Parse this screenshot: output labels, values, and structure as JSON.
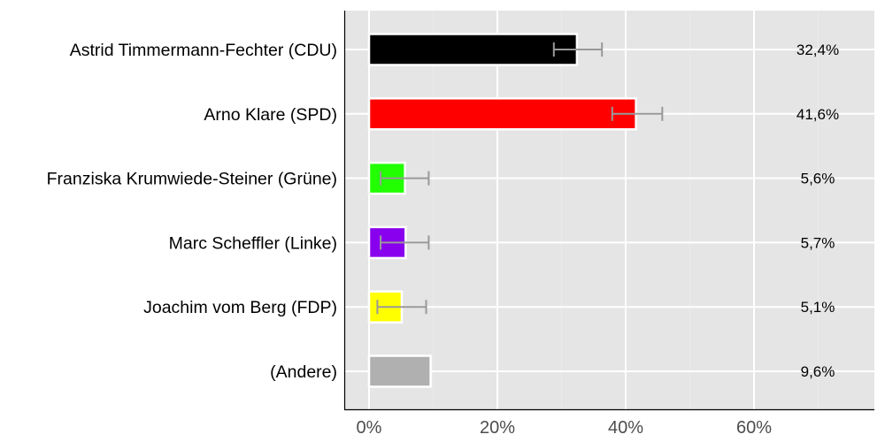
{
  "chart_data": {
    "type": "bar",
    "orientation": "horizontal",
    "title": "",
    "xlabel": "",
    "ylabel": "",
    "xlim": [
      -4,
      78.6
    ],
    "x_ticks": [
      "0%",
      "20%",
      "40%",
      "60%"
    ],
    "x_tick_values": [
      0,
      20,
      40,
      60
    ],
    "grid": true,
    "legend": null,
    "categories": [
      "Astrid Timmermann-Fechter (CDU)",
      "Arno Klare (SPD)",
      "Franziska Krumwiede-Steiner (Grüne)",
      "Marc Scheffler (Linke)",
      "Joachim vom Berg (FDP)",
      "(Andere)"
    ],
    "values": [
      32.4,
      41.6,
      5.6,
      5.7,
      5.1,
      9.6
    ],
    "value_labels": [
      "32,4%",
      "41,6%",
      "5,6%",
      "5,7%",
      "5,1%",
      "9,6%"
    ],
    "colors": [
      "#000000",
      "#ff0000",
      "#22ff00",
      "#8800ee",
      "#ffff00",
      "#b0b0b0"
    ],
    "error_bars": [
      {
        "low": 28.8,
        "high": 36.3
      },
      {
        "low": 37.9,
        "high": 45.7
      },
      {
        "low": 1.8,
        "high": 9.3
      },
      {
        "low": 1.8,
        "high": 9.3
      },
      {
        "low": 1.3,
        "high": 8.9
      },
      null
    ]
  },
  "style": {
    "panel_bg": "#e5e5e5",
    "grid_color": "#ffffff",
    "errorbar_color": "#999999",
    "axis_color": "#000000",
    "tick_text_color": "#4d4d4d"
  }
}
